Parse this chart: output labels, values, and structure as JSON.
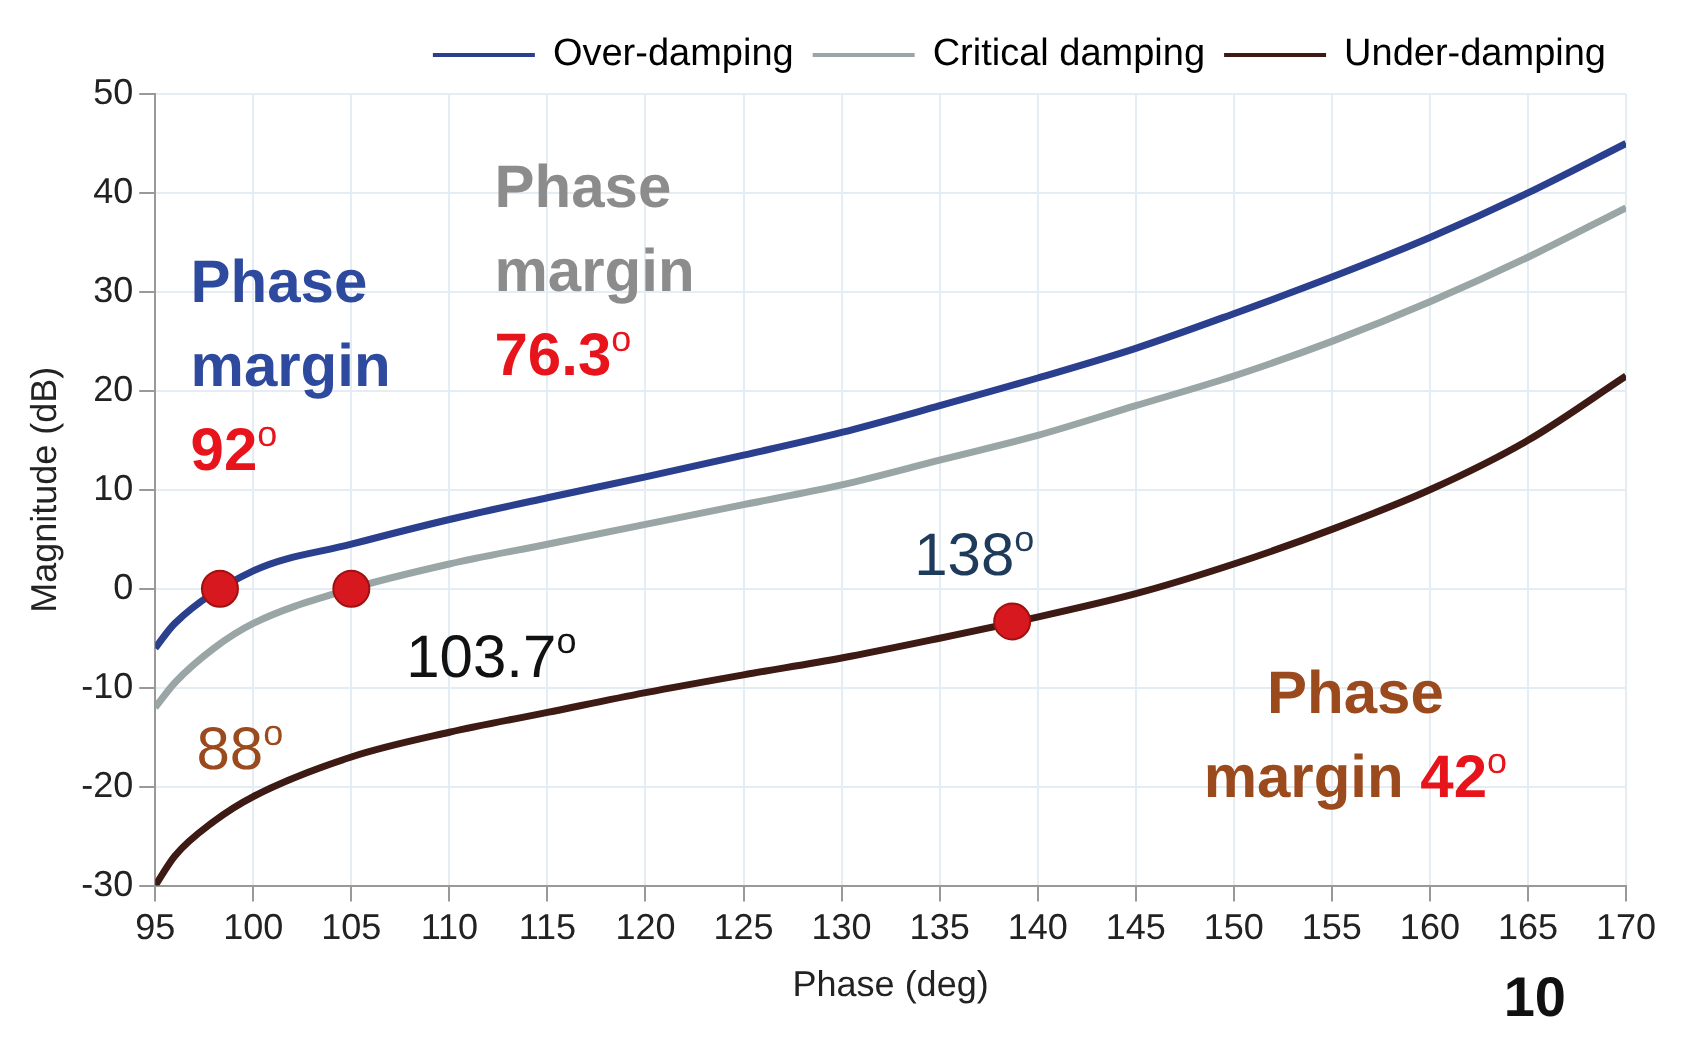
{
  "chart_data": {
    "type": "line",
    "xlabel": "Phase (deg)",
    "ylabel": "Magnitude (dB)",
    "xlim": [
      95,
      170
    ],
    "xticks": [
      95,
      100,
      105,
      110,
      115,
      120,
      125,
      130,
      135,
      140,
      145,
      150,
      155,
      160,
      165,
      170
    ],
    "ylim": [
      -30,
      50
    ],
    "yticks": [
      -30,
      -20,
      -10,
      0,
      10,
      20,
      30,
      40,
      50
    ],
    "grid": true,
    "legend": "top right",
    "marker": "none",
    "line_style": "solid",
    "series": [
      {
        "name": "Over-damping",
        "color": "#2b3f8f",
        "x": [
          95,
          96,
          100,
          105,
          110,
          115,
          120,
          125,
          130,
          135,
          140,
          145,
          150,
          155,
          160,
          165,
          170
        ],
        "values": [
          -6,
          -3.5,
          1.8,
          4.5,
          7,
          9.2,
          11.3,
          13.5,
          15.8,
          18.5,
          21.3,
          24.3,
          27.8,
          31.5,
          35.5,
          40,
          45
        ]
      },
      {
        "name": "Critical damping",
        "color": "#9aa6a6",
        "x": [
          95,
          96,
          98,
          100,
          105,
          110,
          115,
          120,
          125,
          130,
          135,
          140,
          145,
          150,
          155,
          160,
          165,
          170
        ],
        "values": [
          -12,
          -9.5,
          -6,
          -3.5,
          0,
          2.5,
          4.5,
          6.5,
          8.5,
          10.5,
          13,
          15.5,
          18.5,
          21.5,
          25,
          29,
          33.5,
          38.5
        ]
      },
      {
        "name": "Under-damping",
        "color": "#3d1a14",
        "x": [
          95,
          96,
          98,
          100,
          105,
          110,
          115,
          120,
          125,
          130,
          135,
          139,
          145,
          150,
          155,
          160,
          165,
          170
        ],
        "values": [
          -30,
          -27,
          -23.5,
          -21,
          -17,
          -14.5,
          -12.5,
          -10.5,
          -8.7,
          -7,
          -5,
          -3.3,
          -0.5,
          2.5,
          6,
          10,
          15,
          21.5
        ]
      },
      {
        "type": "scatter",
        "marker": "circle",
        "color": "#d7191f",
        "x": [
          98.3,
          105,
          138.7
        ],
        "values": [
          0,
          0,
          -3.3
        ]
      }
    ],
    "annotations": [
      "Phase margin 92$^{o}$",
      "Phase margin 76.3$^{o}$",
      "88$^{o}$",
      "103.7$^{o}$",
      "138$^{o}$",
      "Phase margin 42$^{o}$",
      "10"
    ]
  }
}
